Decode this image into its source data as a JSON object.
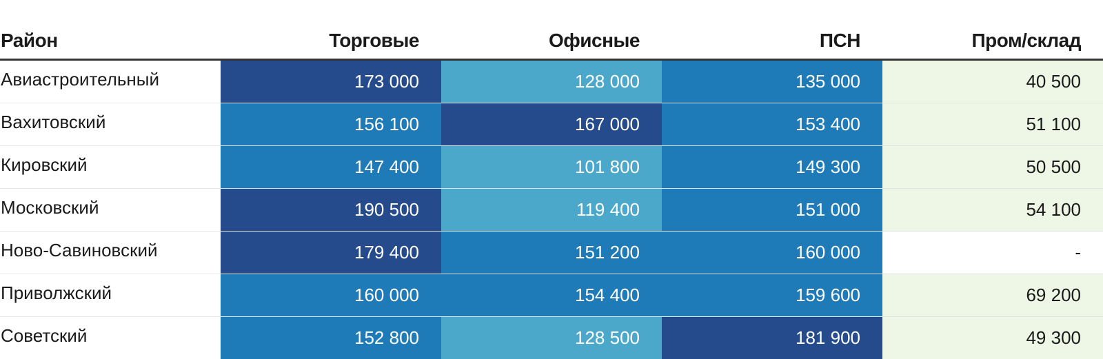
{
  "chart_data": {
    "type": "table",
    "columns": [
      "Район",
      "Торговые",
      "Офисные",
      "ПСН",
      "Пром/склад"
    ],
    "rows": [
      [
        "Авиастроительный",
        "173 000",
        "128 000",
        "135 000",
        "40 500"
      ],
      [
        "Вахитовский",
        "156 100",
        "167 000",
        "153 400",
        "51 100"
      ],
      [
        "Кировский",
        "147 400",
        "101 800",
        "149 300",
        "50 500"
      ],
      [
        "Московский",
        "190 500",
        "119 400",
        "151 000",
        "54 100"
      ],
      [
        "Ново-Савиновский",
        "179 400",
        "151 200",
        "160 000",
        "-"
      ],
      [
        "Приволжский",
        "160 000",
        "154 400",
        "159 600",
        "69 200"
      ],
      [
        "Советский",
        "152 800",
        "128 500",
        "181 900",
        "49 300"
      ]
    ],
    "cell_tones": [
      [
        "dark",
        "light",
        "mid",
        "pale"
      ],
      [
        "mid",
        "dark",
        "mid",
        "pale"
      ],
      [
        "mid",
        "light",
        "mid",
        "pale"
      ],
      [
        "dark",
        "light",
        "mid",
        "pale"
      ],
      [
        "dark",
        "mid",
        "mid",
        "none"
      ],
      [
        "mid",
        "mid",
        "mid",
        "pale"
      ],
      [
        "mid",
        "light",
        "dark",
        "pale"
      ]
    ],
    "tone_colors": {
      "dark": "#254b8c",
      "mid": "#1f7bb8",
      "light": "#4ba8cb",
      "pale": "#eef7e6",
      "none": "#ffffff"
    },
    "tone_text_colors": {
      "dark": "#ffffff",
      "mid": "#ffffff",
      "light": "#ffffff",
      "pale": "#1a1a1a",
      "none": "#1a1a1a"
    }
  }
}
